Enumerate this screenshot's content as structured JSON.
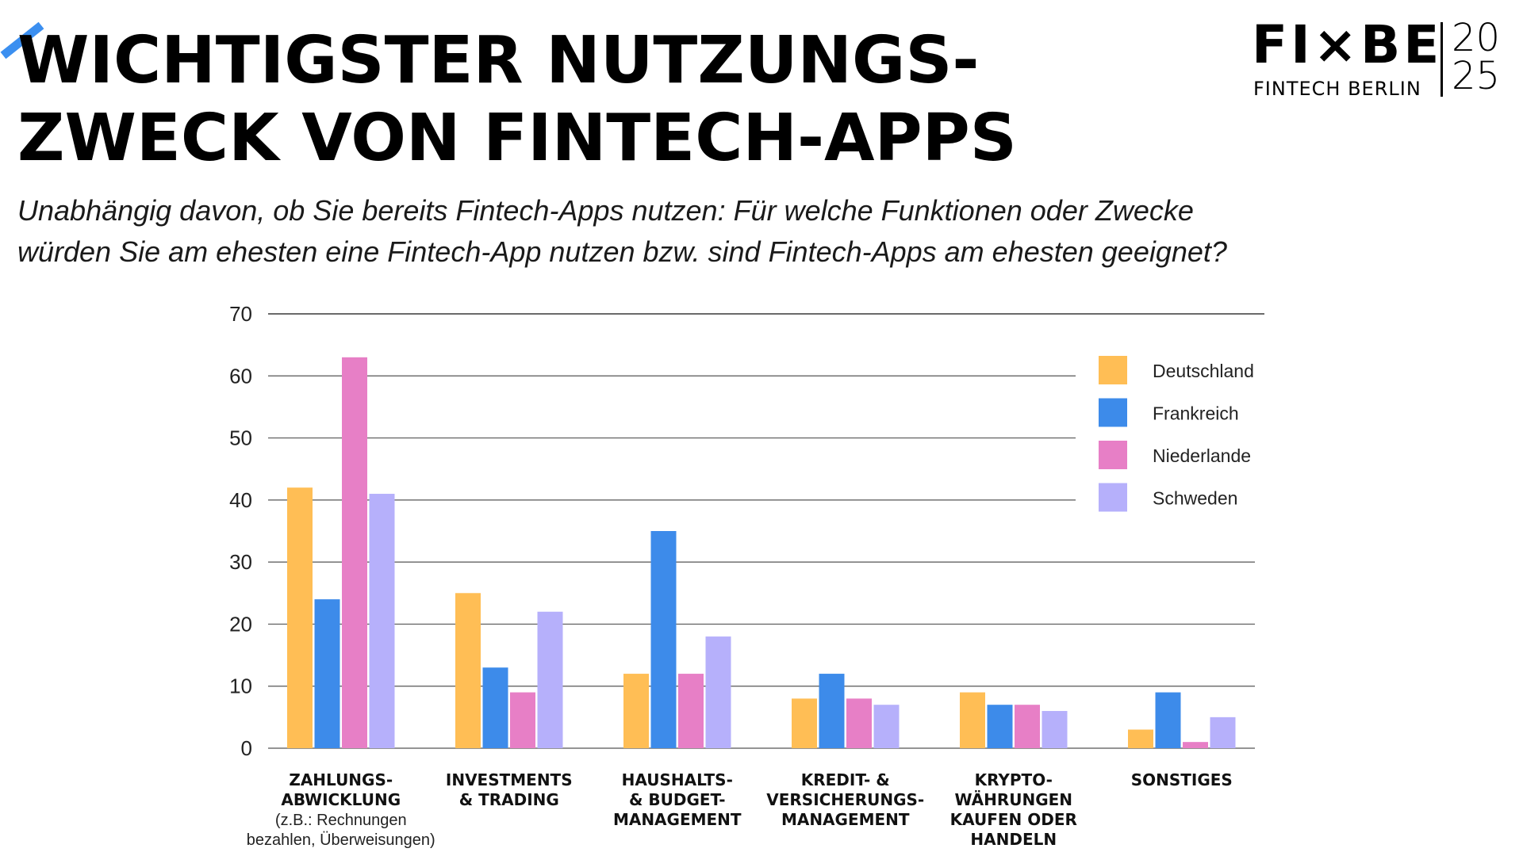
{
  "header": {
    "title_lines": [
      "WICHTIGSTER NUTZUNGS-",
      "ZWECK VON FINTECH-APPS"
    ],
    "subtitle_lines": [
      "Unabhängig davon, ob Sie bereits Fintech-Apps nutzen: Für welche Funktionen oder Zwecke",
      "würden Sie am ehesten eine Fintech-App nutzen bzw. sind Fintech-Apps am ehesten geeignet?"
    ],
    "accent_color": "#3b8ff0"
  },
  "logo": {
    "main": "FI×BE",
    "sub": "FINTECH BERLIN",
    "year_top": "20",
    "year_bottom": "25"
  },
  "chart_data": {
    "type": "bar",
    "title": "",
    "xlabel": "",
    "ylabel": "",
    "ylim": [
      0,
      70
    ],
    "yticks": [
      0,
      10,
      20,
      30,
      40,
      50,
      60,
      70
    ],
    "grid": true,
    "legend_position": "top-right",
    "categories": [
      {
        "lines": [
          "ZAHLUNGS-",
          "ABWICKLUNG"
        ],
        "note_lines": [
          "(z.B.: Rechnungen",
          "bezahlen, Überweisungen)"
        ]
      },
      {
        "lines": [
          "INVESTMENTS",
          "& TRADING"
        ],
        "note_lines": []
      },
      {
        "lines": [
          "HAUSHALTS-",
          "& BUDGET-",
          "MANAGEMENT"
        ],
        "note_lines": []
      },
      {
        "lines": [
          "KREDIT- &",
          "VERSICHERUNGS-",
          "MANAGEMENT"
        ],
        "note_lines": []
      },
      {
        "lines": [
          "KRYPTO-",
          "WÄHRUNGEN",
          "KAUFEN ODER",
          "HANDELN"
        ],
        "note_lines": []
      },
      {
        "lines": [
          "SONSTIGES"
        ],
        "note_lines": []
      }
    ],
    "series": [
      {
        "name": "Deutschland",
        "color": "#ffbe55",
        "values": [
          42,
          25,
          12,
          8,
          9,
          3
        ]
      },
      {
        "name": "Frankreich",
        "color": "#3d8bea",
        "values": [
          24,
          13,
          35,
          12,
          7,
          9
        ]
      },
      {
        "name": "Niederlande",
        "color": "#e77fc6",
        "values": [
          63,
          9,
          12,
          8,
          7,
          1
        ]
      },
      {
        "name": "Schweden",
        "color": "#b6b0fb",
        "values": [
          41,
          22,
          18,
          7,
          6,
          5
        ]
      }
    ]
  }
}
